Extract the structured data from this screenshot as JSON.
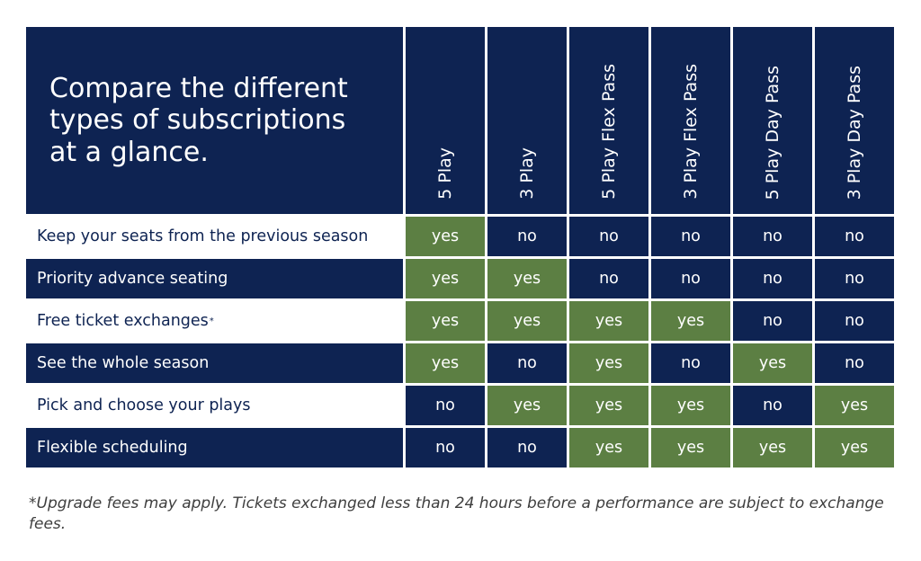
{
  "title": "Compare the different types of subscriptions at a glance.",
  "columns": [
    "5 Play",
    "3 Play",
    "5 Play Flex Pass",
    "3 Play Flex Pass",
    "5 Play Day Pass",
    "3 Play Day Pass"
  ],
  "rows": [
    {
      "label": "Keep your seats from the previous season",
      "marker": "",
      "values": [
        "yes",
        "no",
        "no",
        "no",
        "no",
        "no"
      ]
    },
    {
      "label": "Priority advance seating",
      "marker": "",
      "values": [
        "yes",
        "yes",
        "no",
        "no",
        "no",
        "no"
      ]
    },
    {
      "label": "Free ticket exchanges",
      "marker": "*",
      "values": [
        "yes",
        "yes",
        "yes",
        "yes",
        "no",
        "no"
      ]
    },
    {
      "label": "See the whole season",
      "marker": "",
      "values": [
        "yes",
        "no",
        "yes",
        "no",
        "yes",
        "no"
      ]
    },
    {
      "label": "Pick and choose your plays",
      "marker": "",
      "values": [
        "no",
        "yes",
        "yes",
        "yes",
        "no",
        "yes"
      ]
    },
    {
      "label": "Flexible scheduling",
      "marker": "",
      "values": [
        "no",
        "no",
        "yes",
        "yes",
        "yes",
        "yes"
      ]
    }
  ],
  "footnote": "*Upgrade fees may apply. Tickets exchanged less than 24 hours before a performance are subject to exchange fees.",
  "colors": {
    "navy": "#0e2352",
    "green": "#5c7f43"
  }
}
